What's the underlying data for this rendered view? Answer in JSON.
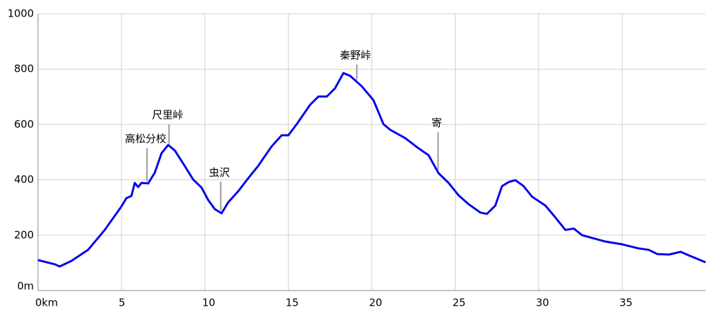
{
  "chart_data": {
    "type": "line",
    "x": [
      0,
      1,
      1.3,
      2,
      3,
      4,
      5,
      5.3,
      5.6,
      5.8,
      6.0,
      6.2,
      6.6,
      7.0,
      7.4,
      7.8,
      8.2,
      8.7,
      9.3,
      9.8,
      10.2,
      10.6,
      11.0,
      11.4,
      12.0,
      12.6,
      13.2,
      14.0,
      14.6,
      15.0,
      15.5,
      16.3,
      16.8,
      17.3,
      17.8,
      18.3,
      18.7,
      19.4,
      20.1,
      20.7,
      21.1,
      22.0,
      22.8,
      23.4,
      24.0,
      24.6,
      25.2,
      25.8,
      26.5,
      26.9,
      27.4,
      27.8,
      28.2,
      28.6,
      29.1,
      29.6,
      30.4,
      31.0,
      31.6,
      32.1,
      32.6,
      33.2,
      34.0,
      35.0,
      36.0,
      36.6,
      37.1,
      37.8,
      38.5,
      39.0,
      40.0
    ],
    "series": [
      {
        "color": "#0000ee",
        "values": [
          110,
          95,
          87,
          107,
          147,
          219,
          304,
          334,
          342,
          389,
          374,
          389,
          387,
          426,
          496,
          526,
          506,
          459,
          401,
          372,
          327,
          294,
          279,
          319,
          359,
          406,
          451,
          521,
          561,
          561,
          601,
          671,
          701,
          701,
          731,
          786,
          776,
          738,
          688,
          601,
          581,
          551,
          514,
          489,
          424,
          389,
          344,
          312,
          282,
          277,
          307,
          377,
          392,
          399,
          377,
          339,
          307,
          264,
          219,
          224,
          200,
          190,
          177,
          167,
          152,
          147,
          132,
          130,
          140,
          127,
          102
        ]
      }
    ],
    "xlim": [
      0,
      40
    ],
    "xticks": [
      {
        "value": 0,
        "label": "0km"
      },
      5,
      10,
      15,
      20,
      25,
      30,
      35
    ],
    "ylim": [
      0,
      1000
    ],
    "yticks": [
      {
        "value": 0,
        "label": "0m"
      },
      200,
      400,
      600,
      800,
      1000
    ],
    "grid": true,
    "annotations": [
      {
        "text": "高松分校",
        "x": 6.53
      },
      {
        "text": "尺里峠",
        "x": 7.85
      },
      {
        "text": "虫沢",
        "x": 10.95
      },
      {
        "text": "秦野峠",
        "x": 19.1
      },
      {
        "text": "寄",
        "x": 23.97
      }
    ]
  }
}
